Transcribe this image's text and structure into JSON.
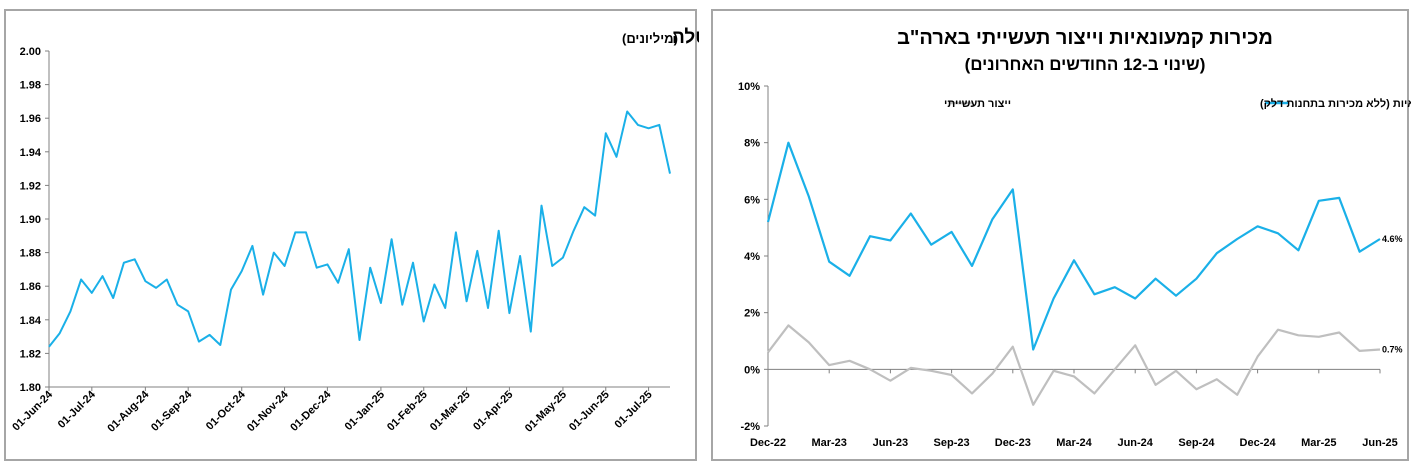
{
  "chart_data": [
    {
      "type": "line",
      "title": "ארה\"ב: סך התביעות המצטברות לדמי אבטלה",
      "subtitle": "(מיליונים)",
      "xlabel": "",
      "ylabel": "",
      "ylim": [
        1.8,
        2.0
      ],
      "yticks": [
        "1.80",
        "1.82",
        "1.84",
        "1.86",
        "1.88",
        "1.90",
        "1.92",
        "1.94",
        "1.96",
        "1.98",
        "2.00"
      ],
      "xticks": [
        "01-Jun-24",
        "01-Jul-24",
        "01-Aug-24",
        "01-Sep-24",
        "01-Oct-24",
        "01-Nov-24",
        "01-Dec-24",
        "01-Jan-25",
        "01-Feb-25",
        "01-Mar-25",
        "01-Apr-25",
        "01-May-25",
        "01-Jun-25",
        "01-Jul-25"
      ],
      "grid": false,
      "colors": {
        "line": "#1ab0e8",
        "axis": "#808080"
      },
      "series": [
        {
          "name": "",
          "values": [
            1.824,
            1.832,
            1.845,
            1.864,
            1.856,
            1.866,
            1.853,
            1.874,
            1.876,
            1.863,
            1.859,
            1.864,
            1.849,
            1.845,
            1.827,
            1.831,
            1.825,
            1.858,
            1.869,
            1.884,
            1.855,
            1.88,
            1.872,
            1.892,
            1.892,
            1.871,
            1.873,
            1.862,
            1.882,
            1.828,
            1.871,
            1.85,
            1.888,
            1.849,
            1.874,
            1.839,
            1.861,
            1.847,
            1.892,
            1.851,
            1.881,
            1.847,
            1.893,
            1.844,
            1.878,
            1.833,
            1.908,
            1.872,
            1.877,
            1.893,
            1.907,
            1.902,
            1.951,
            1.937,
            1.964,
            1.956,
            1.954,
            1.956,
            1.927
          ]
        }
      ]
    },
    {
      "type": "line",
      "title": "מכירות קמעונאיות וייצור תעשייתי בארה\"ב",
      "subtitle": "(שינוי ב-12 החודשים האחרונים)",
      "xlabel": "",
      "ylabel": "",
      "ylim": [
        -2,
        10
      ],
      "yticks": [
        "-2%",
        "0%",
        "2%",
        "4%",
        "6%",
        "8%",
        "10%"
      ],
      "xticks": [
        "Dec-22",
        "Mar-23",
        "Jun-23",
        "Sep-23",
        "Dec-23",
        "Mar-24",
        "Jun-24",
        "Sep-24",
        "Dec-24",
        "Mar-25",
        "Jun-25"
      ],
      "grid": false,
      "legend": "top",
      "colors": {
        "retail": "#1ab0e8",
        "industrial": "#bfbfbf",
        "axis": "#808080"
      },
      "series": [
        {
          "name": "מכירות קמעונאיות (ללא מכירות בתחנות דלק)",
          "values": [
            5.2,
            8.0,
            6.1,
            3.8,
            3.3,
            4.7,
            4.55,
            5.5,
            4.4,
            4.85,
            3.65,
            5.3,
            6.35,
            0.7,
            2.5,
            3.85,
            2.65,
            2.9,
            2.5,
            3.2,
            2.6,
            3.2,
            4.1,
            4.6,
            5.05,
            4.8,
            4.2,
            5.95,
            6.05,
            4.15,
            4.6
          ],
          "end_label": "4.6%"
        },
        {
          "name": "ייצור תעשייתי",
          "values": [
            0.6,
            1.55,
            0.95,
            0.15,
            0.3,
            0.0,
            -0.4,
            0.05,
            -0.05,
            -0.2,
            -0.85,
            -0.15,
            0.8,
            -1.25,
            -0.05,
            -0.25,
            -0.85,
            0.0,
            0.85,
            -0.55,
            -0.05,
            -0.7,
            -0.35,
            -0.9,
            0.45,
            1.4,
            1.2,
            1.15,
            1.3,
            0.65,
            0.7
          ],
          "end_label": "0.7%"
        }
      ]
    }
  ]
}
